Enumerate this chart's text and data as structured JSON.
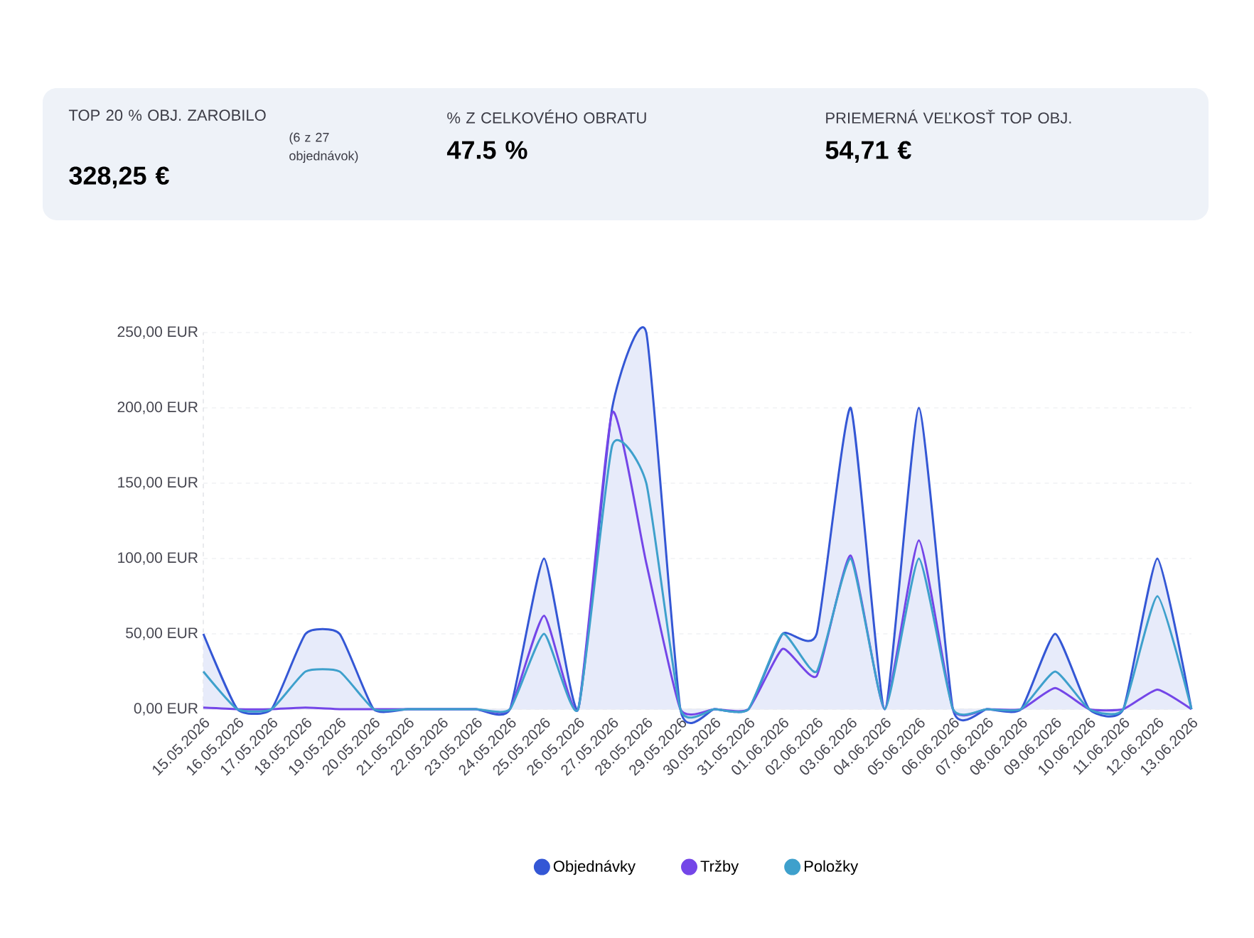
{
  "chart_data": [
    {
      "type": "other",
      "annotations": [
        "TOP 20 % OBJ. ZAROBILO",
        "(6 z 27 objednávok)",
        "328,25 €",
        "% Z CELKOVÉHO OBRATU",
        "47.5 %",
        "PRIEMERNÁ VEĽKOSŤ TOP OBJ.",
        "54,71 €"
      ]
    },
    {
      "type": "line",
      "categories": [
        "15.05.2026",
        "16.05.2026",
        "17.05.2026",
        "18.05.2026",
        "19.05.2026",
        "20.05.2026",
        "21.05.2026",
        "22.05.2026",
        "23.05.2026",
        "24.05.2026",
        "25.05.2026",
        "26.05.2026",
        "27.05.2026",
        "28.05.2026",
        "29.05.2026",
        "30.05.2026",
        "31.05.2026",
        "01.06.2026",
        "02.06.2026",
        "03.06.2026",
        "04.06.2026",
        "05.06.2026",
        "06.06.2026",
        "07.06.2026",
        "08.06.2026",
        "09.06.2026",
        "10.06.2026",
        "11.06.2026",
        "12.06.2026",
        "13.06.2026"
      ],
      "series": [
        {
          "name": "Objednávky",
          "type": "area",
          "color": "#3457d5",
          "values": [
            50,
            0,
            0,
            50,
            50,
            0,
            0,
            0,
            0,
            0,
            100,
            0,
            200,
            250,
            0,
            0,
            0,
            50,
            50,
            200,
            0,
            200,
            0,
            0,
            0,
            50,
            0,
            0,
            100,
            0
          ]
        },
        {
          "name": "Tržby",
          "color": "#7446e8",
          "values": [
            1,
            0,
            0,
            1,
            0,
            0,
            0,
            0,
            0,
            0,
            62,
            0,
            197,
            97,
            0,
            0,
            0,
            40,
            22,
            102,
            0,
            112,
            0,
            0,
            0,
            14,
            0,
            0,
            13,
            0
          ]
        },
        {
          "name": "Položky",
          "color": "#3ea0cc",
          "values": [
            25,
            0,
            0,
            25,
            25,
            0,
            0,
            0,
            0,
            0,
            50,
            0,
            175,
            150,
            0,
            0,
            0,
            50,
            25,
            100,
            0,
            100,
            0,
            0,
            0,
            25,
            0,
            0,
            75,
            0
          ]
        }
      ],
      "ylim": [
        0,
        250
      ],
      "yticks": [
        {
          "value": 0,
          "label": "0,00 EUR"
        },
        {
          "value": 50,
          "label": "50,00 EUR"
        },
        {
          "value": 100,
          "label": "100,00 EUR"
        },
        {
          "value": 150,
          "label": "150,00 EUR"
        },
        {
          "value": 200,
          "label": "200,00 EUR"
        },
        {
          "value": 250,
          "label": "250,00 EUR"
        }
      ],
      "grid": "y",
      "legend": "bottom"
    }
  ]
}
